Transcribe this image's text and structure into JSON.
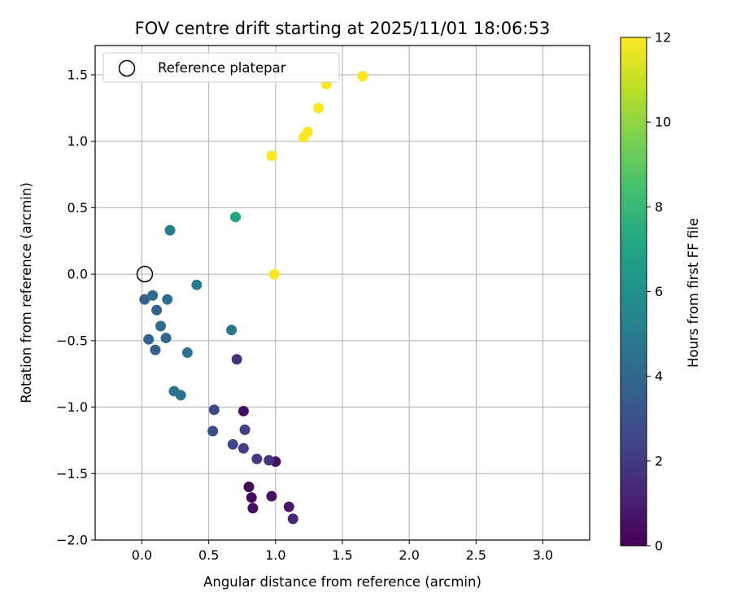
{
  "chart_data": {
    "type": "scatter",
    "title": "FOV centre drift starting at 2025/11/01 18:06:53",
    "xlabel": "Angular distance from reference (arcmin)",
    "ylabel": "Rotation from reference (arcmin)",
    "xlim": [
      -0.35,
      3.35
    ],
    "ylim": [
      -2.0,
      1.72
    ],
    "xticks": [
      0.0,
      0.5,
      1.0,
      1.5,
      2.0,
      2.5,
      3.0
    ],
    "xtick_labels": [
      "0.0",
      "0.5",
      "1.0",
      "1.5",
      "2.0",
      "2.5",
      "3.0"
    ],
    "yticks": [
      -2.0,
      -1.5,
      -1.0,
      -0.5,
      0.0,
      0.5,
      1.0,
      1.5
    ],
    "ytick_labels": [
      "−2.0",
      "−1.5",
      "−1.0",
      "−0.5",
      "0.0",
      "0.5",
      "1.0",
      "1.5"
    ],
    "grid": true,
    "legend": {
      "location": "top-left",
      "entries": [
        "Reference platepar"
      ]
    },
    "reference_point": {
      "x": 0.0,
      "y": 0.0,
      "label": "Reference platepar"
    },
    "colorbar": {
      "label": "Hours from first FF file",
      "colormap": "viridis",
      "range": [
        0,
        12
      ],
      "ticks": [
        0,
        2,
        4,
        6,
        8,
        10,
        12
      ],
      "tick_labels": [
        "0",
        "2",
        "4",
        "6",
        "8",
        "10",
        "12"
      ]
    },
    "points": [
      {
        "x": 0.8,
        "y": -1.6,
        "c": 0.2
      },
      {
        "x": 0.82,
        "y": -1.68,
        "c": 0.3
      },
      {
        "x": 0.83,
        "y": -1.76,
        "c": 0.4
      },
      {
        "x": 0.97,
        "y": -1.67,
        "c": 0.5
      },
      {
        "x": 1.1,
        "y": -1.75,
        "c": 0.8
      },
      {
        "x": 1.13,
        "y": -1.84,
        "c": 1.3
      },
      {
        "x": 1.0,
        "y": -1.41,
        "c": 0.4
      },
      {
        "x": 0.76,
        "y": -1.03,
        "c": 0.5
      },
      {
        "x": 0.95,
        "y": -1.4,
        "c": 1.8
      },
      {
        "x": 0.86,
        "y": -1.39,
        "c": 2.0
      },
      {
        "x": 0.77,
        "y": -1.17,
        "c": 2.2
      },
      {
        "x": 0.76,
        "y": -1.31,
        "c": 2.2
      },
      {
        "x": 0.71,
        "y": -0.64,
        "c": 1.6
      },
      {
        "x": 0.68,
        "y": -1.28,
        "c": 2.5
      },
      {
        "x": 0.54,
        "y": -1.02,
        "c": 2.6
      },
      {
        "x": 0.53,
        "y": -1.18,
        "c": 2.8
      },
      {
        "x": 0.29,
        "y": -0.91,
        "c": 4.5
      },
      {
        "x": 0.24,
        "y": -0.88,
        "c": 4.6
      },
      {
        "x": 0.34,
        "y": -0.59,
        "c": 4.5
      },
      {
        "x": 0.1,
        "y": -0.57,
        "c": 3.6
      },
      {
        "x": 0.05,
        "y": -0.49,
        "c": 3.8
      },
      {
        "x": 0.18,
        "y": -0.48,
        "c": 4.0
      },
      {
        "x": 0.14,
        "y": -0.39,
        "c": 4.1
      },
      {
        "x": 0.11,
        "y": -0.27,
        "c": 3.8
      },
      {
        "x": 0.02,
        "y": -0.19,
        "c": 3.7
      },
      {
        "x": 0.08,
        "y": -0.16,
        "c": 4.2
      },
      {
        "x": 0.19,
        "y": -0.19,
        "c": 4.4
      },
      {
        "x": 0.41,
        "y": -0.08,
        "c": 4.9
      },
      {
        "x": 0.67,
        "y": -0.42,
        "c": 4.8
      },
      {
        "x": 0.21,
        "y": 0.33,
        "c": 5.0
      },
      {
        "x": 0.7,
        "y": 0.43,
        "c": 7.0
      },
      {
        "x": 0.99,
        "y": 0.0,
        "c": 12.0
      },
      {
        "x": 0.97,
        "y": 0.89,
        "c": 12.0
      },
      {
        "x": 1.21,
        "y": 1.03,
        "c": 12.0
      },
      {
        "x": 1.24,
        "y": 1.07,
        "c": 12.0
      },
      {
        "x": 1.32,
        "y": 1.25,
        "c": 12.0
      },
      {
        "x": 1.38,
        "y": 1.43,
        "c": 12.0
      },
      {
        "x": 1.65,
        "y": 1.49,
        "c": 12.0
      }
    ]
  }
}
